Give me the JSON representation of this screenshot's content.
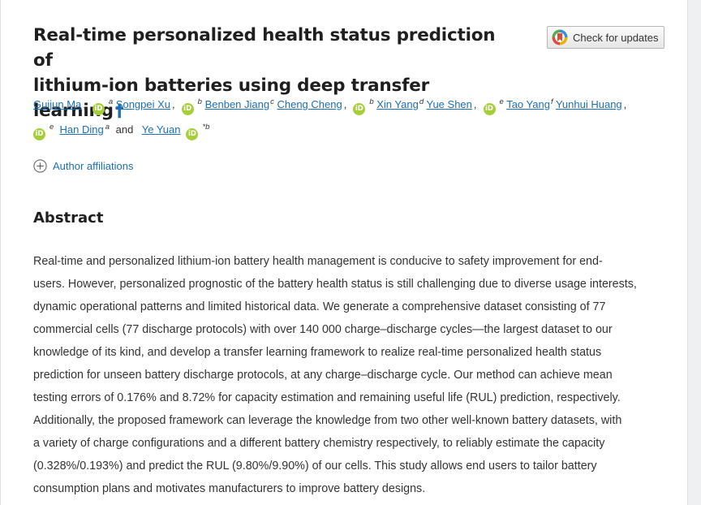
{
  "article": {
    "title_line1": "Real-time personalized health status prediction of",
    "title_line2": "lithium-ion batteries using deep transfer learning",
    "title_mark": "†",
    "check_updates_label": "Check for updates",
    "authors": [
      {
        "name": "Guijun Ma",
        "orcid": true,
        "sup": "a",
        "sep": ","
      },
      {
        "name": "Songpei Xu",
        "orcid": true,
        "sup": "b",
        "sep": ","
      },
      {
        "name": "Benben Jiang",
        "orcid": false,
        "sup": "c",
        "sep": ","
      },
      {
        "name": "Cheng Cheng",
        "orcid": true,
        "sup": "b",
        "sep": ","
      },
      {
        "name": "Xin Yang",
        "orcid": false,
        "sup": "d",
        "sep": ","
      },
      {
        "name": "Yue Shen",
        "orcid": true,
        "sup": "e",
        "sep": ","
      },
      {
        "name": "Tao Yang",
        "orcid": false,
        "sup": "f",
        "sep": ","
      },
      {
        "name": "Yunhui Huang",
        "orcid": true,
        "sup": "e",
        "sep": ""
      },
      {
        "name": "Han Ding",
        "orcid": false,
        "sup": "a",
        "sep": ""
      },
      {
        "name": "Ye Yuan",
        "orcid": true,
        "sup": "*b",
        "sep": ""
      }
    ],
    "and_text": "and",
    "orcid_glyph": "iD",
    "affiliations_label": "Author affiliations",
    "abstract_heading": "Abstract",
    "abstract_lines": [
      "Real-time and personalized lithium-ion battery health management is conducive to safety improvement for end-",
      "users. However, personalized prognostic of the battery health status is still challenging due to diverse usage interests,",
      "dynamic operational patterns and limited historical data. We generate a comprehensive dataset consisting of 77",
      "commercial cells (77 discharge protocols) with over 140 000 charge–discharge cycles—the largest dataset to our",
      "knowledge of its kind, and develop a transfer learning framework to realize real-time personalized health status",
      "prediction for unseen battery discharge protocols, at any charge–discharge cycle. Our method can achieve mean",
      "testing errors of 0.176% and 8.72% for capacity estimation and remaining useful life (RUL) prediction, respectively.",
      "Additionally, the proposed framework can leverage the knowledge from two other well-known battery datasets, with",
      "a variety of charge configurations and a different battery chemistry respectively, to reliably estimate the capacity",
      "(0.328%/0.193%) and predict the RUL (9.80%/9.90%) of our cells. This study allows end users to tailor battery",
      "consumption plans and motivates manufacturers to improve battery designs."
    ]
  },
  "colors": {
    "link": "#1b6fb5",
    "orcid": "#a6ce39",
    "text": "#333333",
    "heading": "#1f1f1f"
  },
  "icons": {
    "check_updates": "crossmark-icon",
    "affiliations": "plus-circle-icon",
    "orcid": "orcid-icon"
  }
}
